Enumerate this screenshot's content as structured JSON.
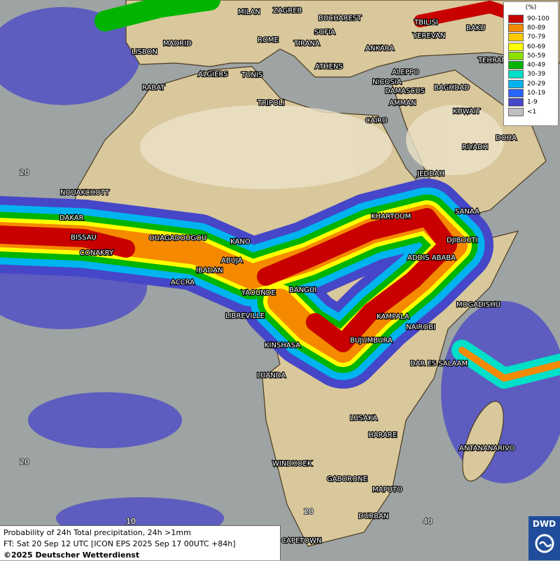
{
  "cities": [
    "MILAN",
    "ZAGREB",
    "BUCHAREST",
    "LISBON",
    "MADRID",
    "ROME",
    "SOFIA",
    "TIRANA",
    "ANKARA",
    "TBILISI",
    "YEREVAN",
    "BAKU",
    "TEHRAN",
    "ATHENS",
    "ALGIERS",
    "TUNIS",
    "ALEPPO",
    "NICOSIA",
    "RABAT",
    "TRIPOLI",
    "DAMASCUS",
    "BAGHDAD",
    "AMMAN",
    "KUWAIT",
    "CAIRO",
    "DOHA",
    "RIYADH",
    "JEDDAH",
    "NOUAKCHOTT",
    "KHARTOUM",
    "SANAA",
    "DAKAR",
    "BISSAU",
    "OUAGADOUGOU",
    "DJIBOUTI",
    "KANO",
    "CONAKRY",
    "ABUJA",
    "ADDIS ABABA",
    "IBADAN",
    "ACCRA",
    "BANGUI",
    "YAOUNDE",
    "MOGADISHU",
    "LIBREVILLE",
    "KAMPALA",
    "NAIROBI",
    "BUJUMBURA",
    "KINSHASA",
    "DAR ES SALAAM",
    "LUANDA",
    "LUSAKA",
    "HARARE",
    "ANTANANARIVO",
    "WINDHOEK",
    "GABORONE",
    "MAPUTO",
    "DURBAN",
    "CAPETOWN"
  ],
  "coordinates": [
    "20",
    "20",
    "10",
    "20",
    "40"
  ],
  "legend": {
    "title": "(%)",
    "items": [
      {
        "label": "90-100",
        "color": "#c80000"
      },
      {
        "label": "80-89",
        "color": "#f58a00"
      },
      {
        "label": "70-79",
        "color": "#ffc800"
      },
      {
        "label": "60-69",
        "color": "#ffff00"
      },
      {
        "label": "50-59",
        "color": "#8ce000"
      },
      {
        "label": "40-49",
        "color": "#00b400"
      },
      {
        "label": "30-39",
        "color": "#00e0c8"
      },
      {
        "label": "20-29",
        "color": "#00b4f0"
      },
      {
        "label": "10-19",
        "color": "#2864ff"
      },
      {
        "label": "1-9",
        "color": "#4646c8"
      },
      {
        "label": "<1",
        "color": "#c0c0c0"
      }
    ]
  },
  "caption": {
    "line1": "Probability of 24h Total precipitation, 24h >1mm",
    "line2": "FT: Sat 20 Sep 12 UTC [ICON EPS 2025 Sep 17 00UTC +84h]",
    "line3": "©2025 Deutscher Wetterdienst"
  },
  "logo": "DWD"
}
